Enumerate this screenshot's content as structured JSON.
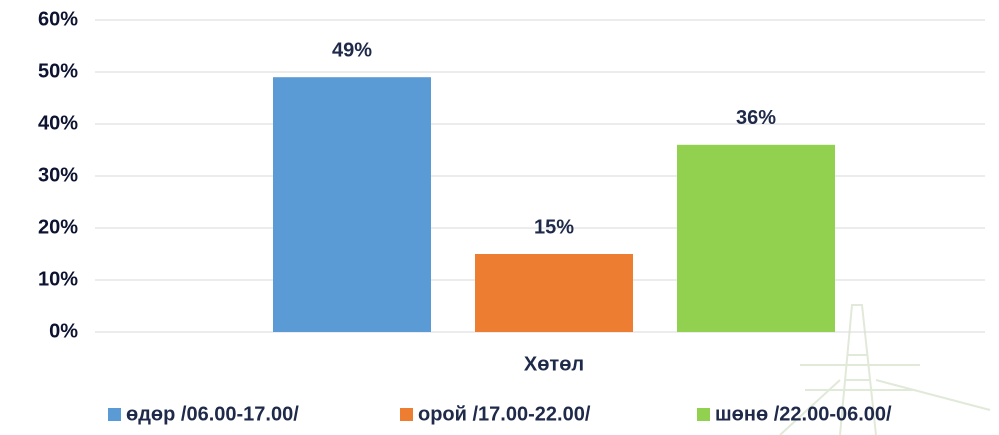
{
  "chart_data": {
    "type": "bar",
    "categories": [
      "Хөтөл"
    ],
    "series": [
      {
        "name": "өдөр /06.00-17.00/",
        "color": "#5b9bd5",
        "values": [
          49
        ],
        "value_labels": [
          "49%"
        ]
      },
      {
        "name": "орой /17.00-22.00/",
        "color": "#ed7d31",
        "values": [
          15
        ],
        "value_labels": [
          "15%"
        ]
      },
      {
        "name": "шөнө /22.00-06.00/",
        "color": "#92d050",
        "values": [
          36
        ],
        "value_labels": [
          "36%"
        ]
      }
    ],
    "ylim": [
      0,
      60
    ],
    "yticks": [
      {
        "value": 0,
        "label": "0%"
      },
      {
        "value": 10,
        "label": "10%"
      },
      {
        "value": 20,
        "label": "20%"
      },
      {
        "value": 30,
        "label": "30%"
      },
      {
        "value": 40,
        "label": "40%"
      },
      {
        "value": 50,
        "label": "50%"
      },
      {
        "value": 60,
        "label": "60%"
      }
    ],
    "grid": true,
    "legend": "bottom"
  }
}
